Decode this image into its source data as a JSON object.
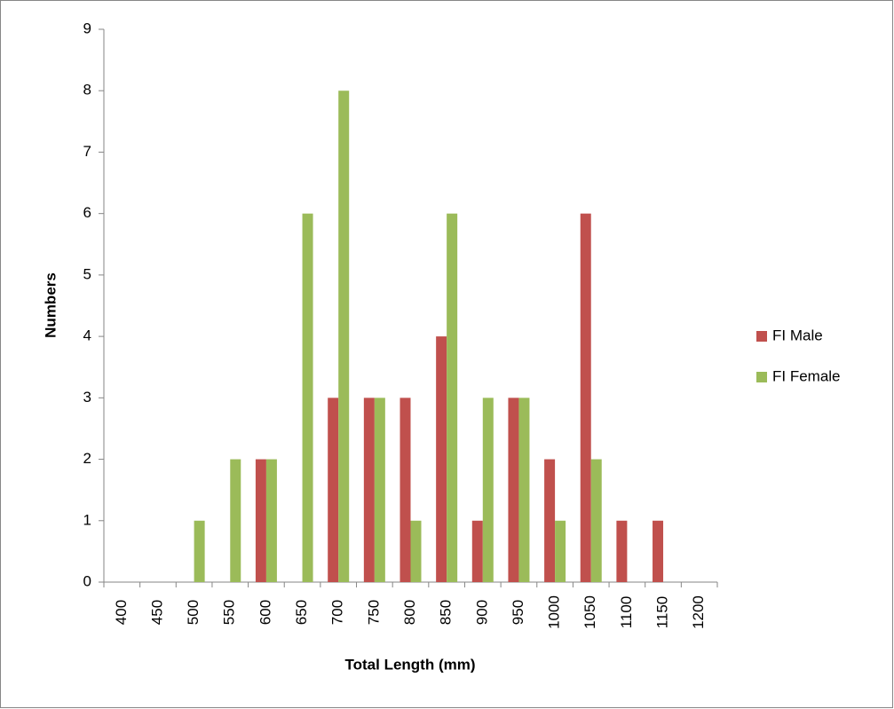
{
  "chart_data": {
    "type": "bar",
    "x_label": "Total Length (mm)",
    "y_label": "Numbers",
    "categories": [
      "400",
      "450",
      "500",
      "550",
      "600",
      "650",
      "700",
      "750",
      "800",
      "850",
      "900",
      "950",
      "1000",
      "1050",
      "1100",
      "1150",
      "1200"
    ],
    "series": [
      {
        "name": "FI Male",
        "color": "#c0504d",
        "values": [
          0,
          0,
          0,
          0,
          2,
          0,
          3,
          3,
          3,
          4,
          1,
          3,
          2,
          6,
          1,
          1,
          0
        ]
      },
      {
        "name": "FI Female",
        "color": "#9bbb59",
        "values": [
          0,
          0,
          1,
          2,
          2,
          6,
          8,
          3,
          1,
          6,
          3,
          3,
          1,
          2,
          0,
          0,
          0
        ]
      }
    ],
    "ylim": [
      0,
      9
    ],
    "yticks": [
      0,
      1,
      2,
      3,
      4,
      5,
      6,
      7,
      8,
      9
    ],
    "grid": false,
    "legend": "right"
  }
}
